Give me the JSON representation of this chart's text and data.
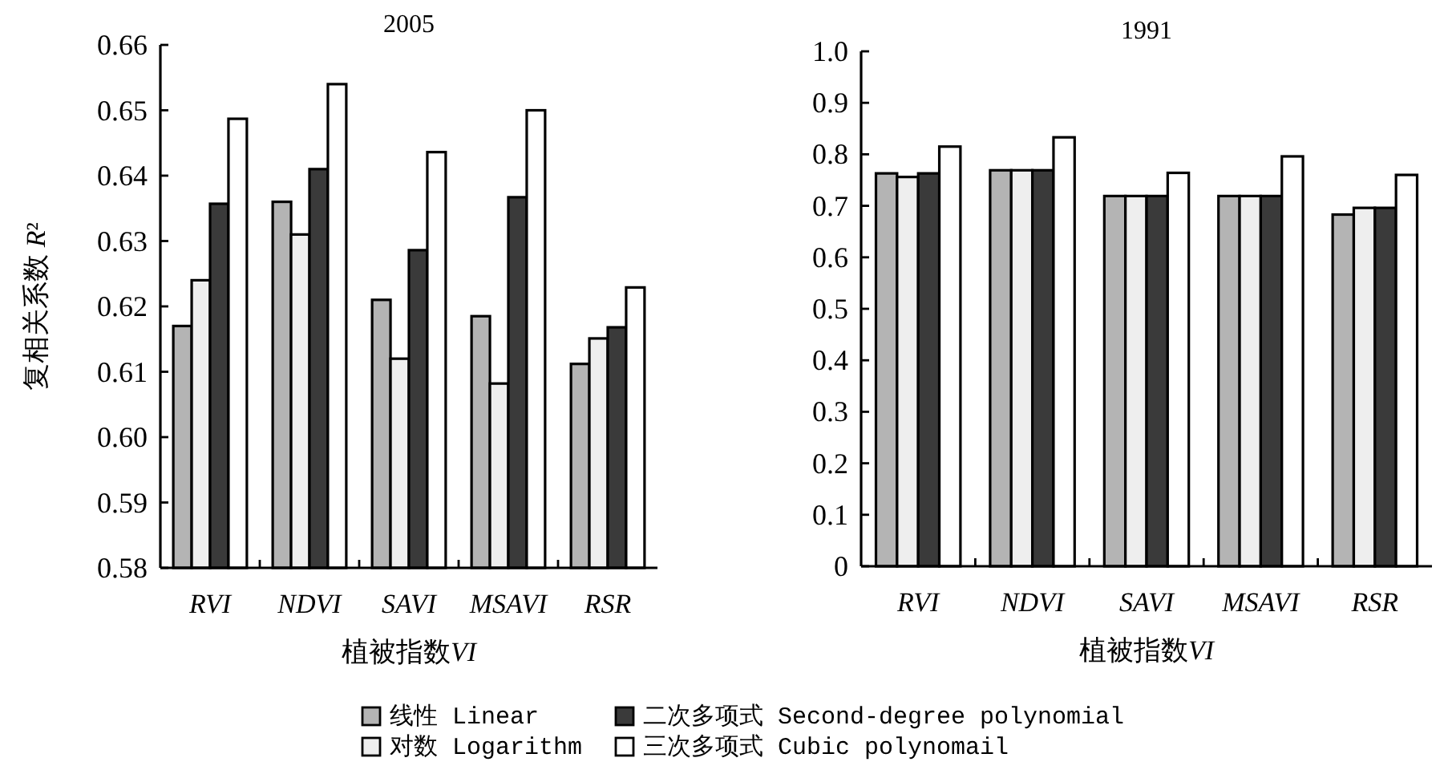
{
  "chart_data": [
    {
      "type": "bar",
      "title": "2005",
      "xlabel": "植被指数VI",
      "ylabel": "复相关系数 R²",
      "categories": [
        "RVI",
        "NDVI",
        "SAVI",
        "MSAVI",
        "RSR"
      ],
      "ylim": [
        0.58,
        0.66
      ],
      "yticks": [
        0.58,
        0.59,
        {
          "value": 0.6,
          "label": "0.60"
        },
        0.61,
        0.62,
        0.63,
        0.64,
        0.65,
        0.66
      ],
      "legend": "bottom",
      "series": [
        {
          "name": "线性 Linear",
          "color": "#b4b4b4",
          "values": [
            0.617,
            0.636,
            0.621,
            0.6185,
            0.6112
          ]
        },
        {
          "name": "对数 Logarithm",
          "color": "#eeeeee",
          "values": [
            0.624,
            0.631,
            0.612,
            0.6082,
            0.6151
          ]
        },
        {
          "name": "二次多项式 Second-degree polynomial",
          "color": "#3a3a3a",
          "values": [
            0.6357,
            0.641,
            0.6286,
            0.6367,
            0.6168
          ]
        },
        {
          "name": "三次多项式 Cubic polynomail",
          "color": "#ffffff",
          "values": [
            0.6487,
            0.654,
            0.6436,
            0.65,
            0.6229
          ]
        }
      ]
    },
    {
      "type": "bar",
      "title": "1991",
      "xlabel": "植被指数VI",
      "categories": [
        "RVI",
        "NDVI",
        "SAVI",
        "MSAVI",
        "RSR"
      ],
      "ylim": [
        0,
        1
      ],
      "yticks": [
        0,
        0.1,
        0.2,
        0.3,
        0.4,
        0.5,
        0.6,
        0.7,
        0.8,
        0.9,
        {
          "value": 1,
          "label": "1.0"
        }
      ],
      "series": [
        {
          "color": "#b4b4b4",
          "values": [
            0.763,
            0.769,
            0.719,
            0.719,
            0.683
          ]
        },
        {
          "color": "#eeeeee",
          "values": [
            0.756,
            0.769,
            0.719,
            0.719,
            0.696
          ]
        },
        {
          "color": "#3a3a3a",
          "values": [
            0.763,
            0.769,
            0.719,
            0.719,
            0.696
          ]
        },
        {
          "color": "#ffffff",
          "values": [
            0.815,
            0.833,
            0.764,
            0.796,
            0.76
          ]
        }
      ]
    }
  ]
}
